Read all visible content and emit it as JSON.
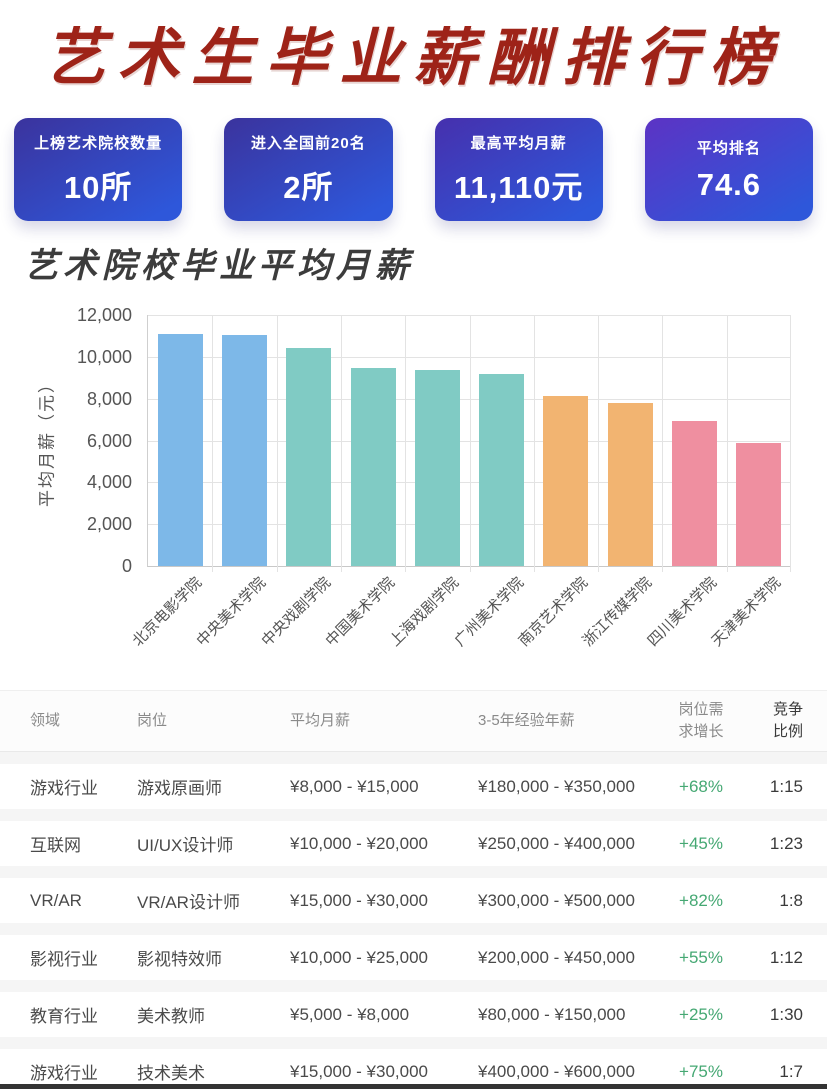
{
  "page": {
    "title": "艺术生毕业薪酬排行榜",
    "section_title": "艺术院校毕业平均月薪"
  },
  "stats": [
    {
      "label": "上榜艺术院校数量",
      "value": "10所"
    },
    {
      "label": "进入全国前20名",
      "value": "2所"
    },
    {
      "label": "最高平均月薪",
      "value": "11,110元"
    },
    {
      "label": "平均排名",
      "value": "74.6"
    }
  ],
  "colors": {
    "title_red": "#9e2318",
    "card_gradient_start": "#3b339d",
    "card_gradient_end": "#2e57da",
    "growth_green": "#45a873",
    "bar_blue": "#7db8e8",
    "bar_teal": "#80cbc4",
    "bar_orange": "#f2b471",
    "bar_pink": "#ef8fa0"
  },
  "chart_data": {
    "type": "bar",
    "title": "艺术院校毕业平均月薪",
    "xlabel": "",
    "ylabel": "平均月薪（元）",
    "ylim": [
      0,
      12000
    ],
    "yticks": [
      0,
      2000,
      4000,
      6000,
      8000,
      10000,
      12000
    ],
    "ytick_labels": [
      "0",
      "2,000",
      "4,000",
      "6,000",
      "8,000",
      "10,000",
      "12,000"
    ],
    "grid": true,
    "legend": "none",
    "categories": [
      "北京电影学院",
      "中央美术学院",
      "中央戏剧学院",
      "中国美术学院",
      "上海戏剧学院",
      "广州美术学院",
      "南京艺术学院",
      "浙江传媒学院",
      "四川美术学院",
      "天津美术学院"
    ],
    "values": [
      11110,
      11050,
      10400,
      9450,
      9380,
      9200,
      8150,
      7800,
      6950,
      5900
    ],
    "bar_colors": [
      "#7db8e8",
      "#7db8e8",
      "#80cbc4",
      "#80cbc4",
      "#80cbc4",
      "#80cbc4",
      "#f2b471",
      "#f2b471",
      "#ef8fa0",
      "#ef8fa0"
    ]
  },
  "table": {
    "headers": [
      "领域",
      "岗位",
      "平均月薪",
      "3-5年经验年薪",
      "岗位需求增长",
      "竞争比例"
    ],
    "rows": [
      [
        "游戏行业",
        "游戏原画师",
        "¥8,000 - ¥15,000",
        "¥180,000 - ¥350,000",
        "+68%",
        "1:15"
      ],
      [
        "互联网",
        "UI/UX设计师",
        "¥10,000 - ¥20,000",
        "¥250,000 - ¥400,000",
        "+45%",
        "1:23"
      ],
      [
        "VR/AR",
        "VR/AR设计师",
        "¥15,000 - ¥30,000",
        "¥300,000 - ¥500,000",
        "+82%",
        "1:8"
      ],
      [
        "影视行业",
        "影视特效师",
        "¥10,000 - ¥25,000",
        "¥200,000 - ¥450,000",
        "+55%",
        "1:12"
      ],
      [
        "教育行业",
        "美术教师",
        "¥5,000 - ¥8,000",
        "¥80,000 - ¥150,000",
        "+25%",
        "1:30"
      ],
      [
        "游戏行业",
        "技术美术",
        "¥15,000 - ¥30,000",
        "¥400,000 - ¥600,000",
        "+75%",
        "1:7"
      ]
    ]
  }
}
